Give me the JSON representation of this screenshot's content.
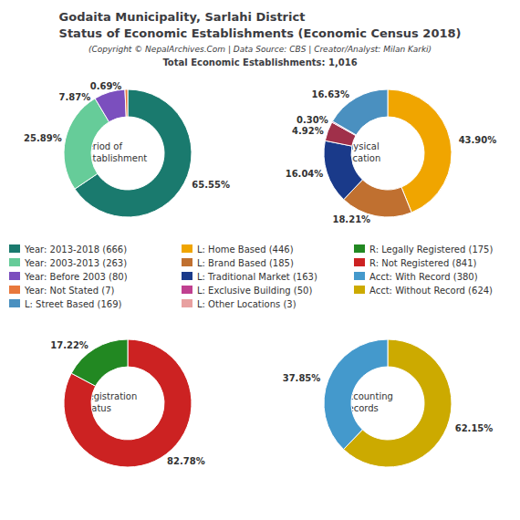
{
  "title": "Godaita Municipality, Sarlahi District\nStatus of Economic Establishments (Economic Census 2018)",
  "subtitle": "(Copyright © NepalArchives.Com | Data Source: CBS | Creator/Analyst: Milan Karki)",
  "annotations": [
    "Total Economic Establishments: 1,016"
  ],
  "legend_entries": [
    {
      "name": "Year: 2013-2018 (666)",
      "color": "#1a7a6e"
    },
    {
      "name": "Year: 2003-2013 (263)",
      "color": "#66cc99"
    },
    {
      "name": "Year: Before 2003 (80)",
      "color": "#7b4fbe"
    },
    {
      "name": "Year: Not Stated (7)",
      "color": "#e8783c"
    },
    {
      "name": "L: Street Based (169)",
      "color": "#4a90c0"
    },
    {
      "name": "L: Home Based (446)",
      "color": "#f0a500"
    },
    {
      "name": "L: Brand Based (185)",
      "color": "#c07030"
    },
    {
      "name": "L: Traditional Market (163)",
      "color": "#1a3a8a"
    },
    {
      "name": "L: Exclusive Building (50)",
      "color": "#c04090"
    },
    {
      "name": "L: Other Locations (3)",
      "color": "#e8a0a0"
    },
    {
      "name": "R: Legally Registered (175)",
      "color": "#228822"
    },
    {
      "name": "R: Not Registered (841)",
      "color": "#cc2222"
    },
    {
      "name": "Acct: With Record (380)",
      "color": "#4499cc"
    },
    {
      "name": "Acct: Without Record (624)",
      "color": "#ccaa00"
    }
  ],
  "chart_data": [
    {
      "type": "pie",
      "title": "Period of\nEstablishment",
      "values": [
        65.55,
        25.89,
        7.87,
        0.69
      ],
      "value_labels": [
        "65.55%",
        "25.89%",
        "7.87%",
        "0.69%"
      ],
      "colors": [
        "#1a7a6e",
        "#66cc99",
        "#7b4fbe",
        "#e8783c"
      ]
    },
    {
      "type": "pie",
      "title": "Physical\nLocation",
      "values": [
        43.9,
        18.21,
        16.04,
        4.92,
        0.3,
        16.63
      ],
      "value_labels": [
        "43.90%",
        "18.21%",
        "16.04%",
        "4.92%",
        "0.30%",
        "16.63%"
      ],
      "colors": [
        "#f0a500",
        "#c07030",
        "#1a3a8a",
        "#a0304a",
        "#c04090",
        "#4a90c0"
      ]
    },
    {
      "type": "pie",
      "title": "Registration\nStatus",
      "values": [
        82.78,
        17.22
      ],
      "value_labels": [
        "82.78%",
        "17.22%"
      ],
      "colors": [
        "#cc2222",
        "#228822"
      ]
    },
    {
      "type": "pie",
      "title": "Accounting\nRecords",
      "values": [
        62.15,
        37.85
      ],
      "value_labels": [
        "62.15%",
        "37.85%"
      ],
      "colors": [
        "#ccaa00",
        "#4499cc"
      ]
    }
  ]
}
